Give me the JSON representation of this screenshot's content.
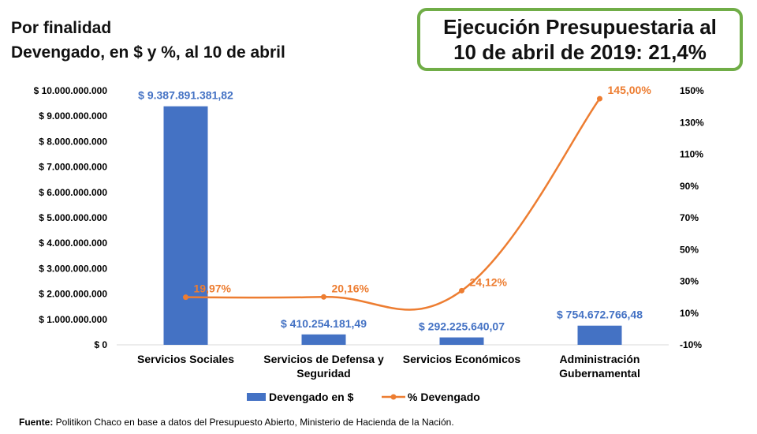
{
  "header": {
    "title_line1": "Por finalidad",
    "title_line2": "Devengado, en $ y %, al 10 de abril"
  },
  "badge": {
    "line1": "Ejecución Presupuestaria al",
    "line2": "10 de abril de 2019: 21,4%"
  },
  "chart_data": {
    "type": "bar",
    "title": "",
    "xlabel": "",
    "ylabel": "",
    "categories": [
      [
        "Servicios Sociales"
      ],
      [
        "Servicios de Defensa y",
        "Seguridad"
      ],
      [
        "Servicios Económicos"
      ],
      [
        "Administración",
        "Gubernamental"
      ]
    ],
    "series": [
      {
        "name": "Devengado en $",
        "type": "bar",
        "axis": "left",
        "color": "#4472c4",
        "values": [
          9387891381.82,
          410254181.49,
          292225640.07,
          754672766.48
        ],
        "labels": [
          "$ 9.387.891.381,82",
          "$ 410.254.181,49",
          "$ 292.225.640,07",
          "$ 754.672.766,48"
        ]
      },
      {
        "name": "% Devengado",
        "type": "line",
        "axis": "right",
        "color": "#ed7d31",
        "values": [
          19.97,
          20.16,
          24.12,
          145.0
        ],
        "labels": [
          "19,97%",
          "20,16%",
          "24,12%",
          "145,00%"
        ]
      }
    ],
    "y_left": {
      "ylim": [
        0,
        10000000000
      ],
      "ticks": [
        0,
        1000000000,
        2000000000,
        3000000000,
        4000000000,
        5000000000,
        6000000000,
        7000000000,
        8000000000,
        9000000000,
        10000000000
      ],
      "tick_labels": [
        "$ 0",
        "$ 1.000.000.000",
        "$ 2.000.000.000",
        "$ 3.000.000.000",
        "$ 4.000.000.000",
        "$ 5.000.000.000",
        "$ 6.000.000.000",
        "$ 7.000.000.000",
        "$ 8.000.000.000",
        "$ 9.000.000.000",
        "$ 10.000.000.000"
      ]
    },
    "y_right": {
      "ylim": [
        -10,
        150
      ],
      "ticks": [
        -10,
        10,
        30,
        50,
        70,
        90,
        110,
        130,
        150
      ],
      "tick_labels": [
        "-10%",
        "10%",
        "30%",
        "50%",
        "70%",
        "90%",
        "110%",
        "130%",
        "150%"
      ]
    },
    "grid": false,
    "legend_position": "bottom"
  },
  "footer": {
    "source_label": "Fuente:",
    "source_text": " Politikon Chaco en base a datos del Presupuesto Abierto, Ministerio de Hacienda de la Nación."
  }
}
